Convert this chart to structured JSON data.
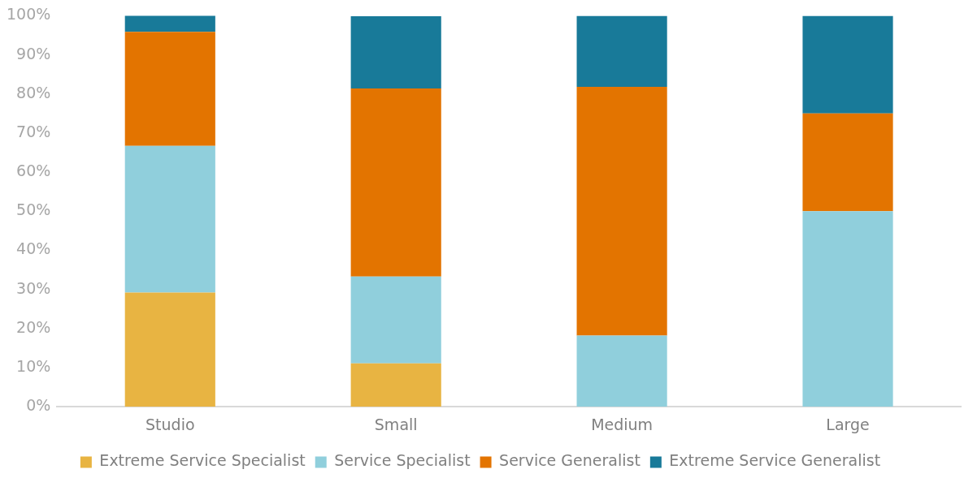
{
  "chart_data": {
    "type": "bar",
    "stacked": true,
    "categories": [
      "Studio",
      "Small",
      "Medium",
      "Large"
    ],
    "series": [
      {
        "name": "Extreme Service Specialist",
        "color": "#e8b442",
        "values": [
          29.2,
          11.1,
          0,
          0
        ]
      },
      {
        "name": "Service Specialist",
        "color": "#90cfdc",
        "values": [
          37.5,
          22.2,
          18.2,
          50
        ]
      },
      {
        "name": "Service Generalist",
        "color": "#e37400",
        "values": [
          29.2,
          48.1,
          63.6,
          25
        ]
      },
      {
        "name": "Extreme Service Generalist",
        "color": "#187a99",
        "values": [
          4.2,
          18.5,
          18.2,
          25
        ]
      }
    ],
    "ylim": [
      0,
      100
    ],
    "yticks": [
      {
        "value": 0,
        "label": "0%"
      },
      {
        "value": 10,
        "label": "10%"
      },
      {
        "value": 20,
        "label": "20%"
      },
      {
        "value": 30,
        "label": "30%"
      },
      {
        "value": 40,
        "label": "40%"
      },
      {
        "value": 50,
        "label": "50%"
      },
      {
        "value": 60,
        "label": "60%"
      },
      {
        "value": 70,
        "label": "70%"
      },
      {
        "value": 80,
        "label": "80%"
      },
      {
        "value": 90,
        "label": "90%"
      },
      {
        "value": 100,
        "label": "100%"
      }
    ],
    "grid": false,
    "legend": "bottom"
  }
}
